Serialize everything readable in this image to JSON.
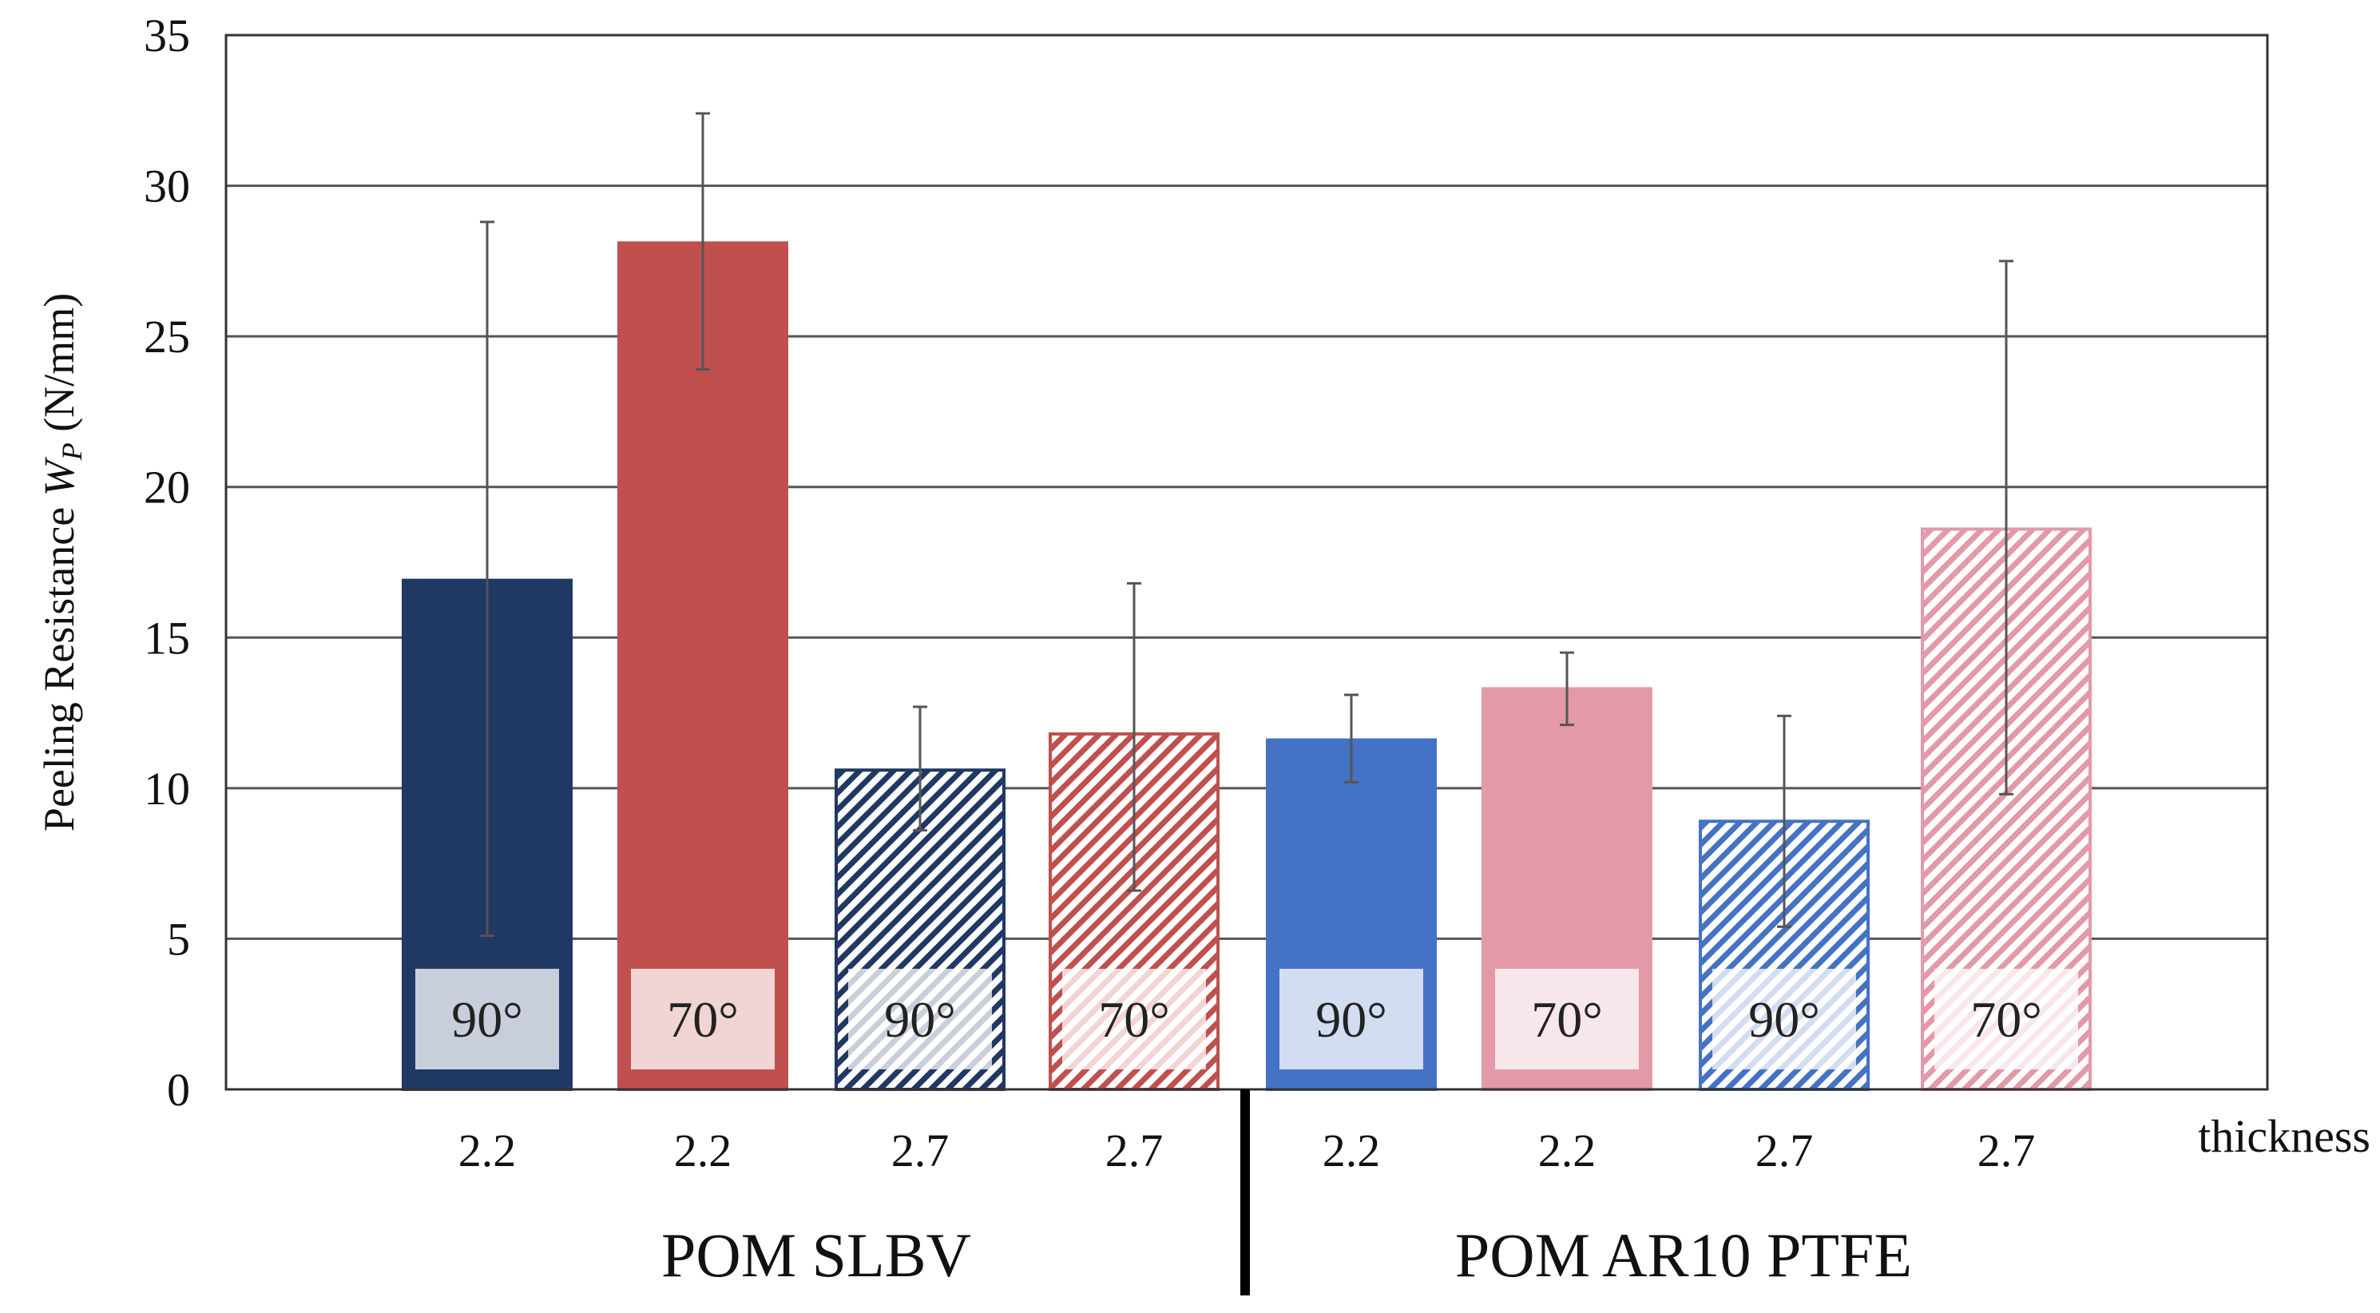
{
  "chart_data": {
    "type": "bar",
    "title": "",
    "ylabel_prefix": "Peeling Resistance ",
    "ylabel_var": "W",
    "ylabel_sub": "P",
    "ylabel_unit": " (N/mm)",
    "ylim": [
      0,
      35
    ],
    "yticks": [
      0,
      5,
      10,
      15,
      20,
      25,
      30,
      35
    ],
    "grid": true,
    "x_axis_title": "thickness",
    "groups": [
      {
        "label": "POM SLBV"
      },
      {
        "label": "POM AR10 PTFE"
      }
    ],
    "bars": [
      {
        "group": 0,
        "thickness": "2.2",
        "angle": "90°",
        "value": 16.9,
        "err_low": 5.1,
        "err_high": 28.8,
        "color": "#1f3864",
        "hatched": false
      },
      {
        "group": 0,
        "thickness": "2.2",
        "angle": "70°",
        "value": 28.1,
        "err_low": 23.9,
        "err_high": 32.4,
        "color": "#c0504d",
        "hatched": false
      },
      {
        "group": 0,
        "thickness": "2.7",
        "angle": "90°",
        "value": 10.6,
        "err_low": 8.6,
        "err_high": 12.7,
        "color": "#1f3864",
        "hatched": true
      },
      {
        "group": 0,
        "thickness": "2.7",
        "angle": "70°",
        "value": 11.8,
        "err_low": 6.6,
        "err_high": 16.8,
        "color": "#c0504d",
        "hatched": true
      },
      {
        "group": 1,
        "thickness": "2.2",
        "angle": "90°",
        "value": 11.6,
        "err_low": 10.2,
        "err_high": 13.1,
        "color": "#4472c4",
        "hatched": false
      },
      {
        "group": 1,
        "thickness": "2.2",
        "angle": "70°",
        "value": 13.3,
        "err_low": 12.1,
        "err_high": 14.5,
        "color": "#e399a7",
        "hatched": false
      },
      {
        "group": 1,
        "thickness": "2.7",
        "angle": "90°",
        "value": 8.9,
        "err_low": 5.4,
        "err_high": 12.4,
        "color": "#4472c4",
        "hatched": true
      },
      {
        "group": 1,
        "thickness": "2.7",
        "angle": "70°",
        "value": 18.6,
        "err_low": 9.8,
        "err_high": 27.5,
        "color": "#e399a7",
        "hatched": true
      }
    ]
  }
}
